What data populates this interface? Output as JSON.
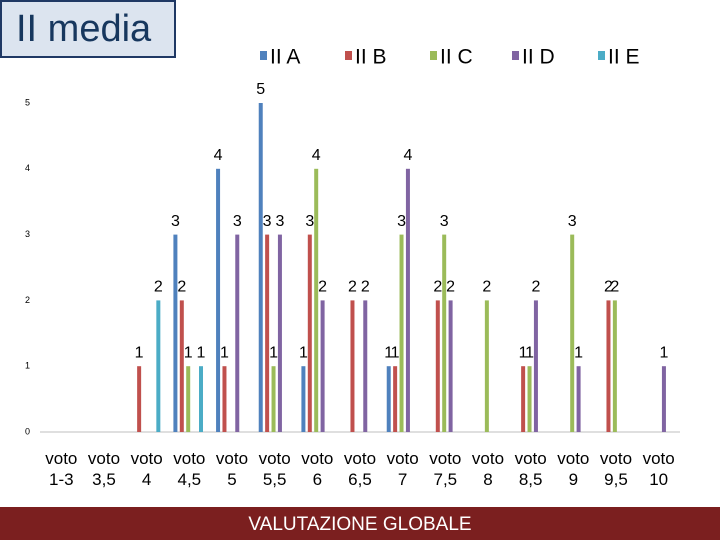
{
  "chart_data": {
    "type": "bar",
    "title": "II media",
    "xlabel": "VALUTAZIONE GLOBALE",
    "categories": [
      "voto 1-3",
      "voto 3,5",
      "voto 4",
      "voto 4,5",
      "voto 5",
      "voto 5,5",
      "voto 6",
      "voto 6,5",
      "voto 7",
      "voto 7,5",
      "voto 8",
      "voto 8,5",
      "voto 9",
      "voto 9,5",
      "voto 10"
    ],
    "series": [
      {
        "name": "II A",
        "color": "#4f81bd",
        "values": [
          null,
          null,
          null,
          3,
          4,
          5,
          1,
          null,
          1,
          null,
          null,
          null,
          null,
          null,
          null
        ]
      },
      {
        "name": "II B",
        "color": "#c0504d",
        "values": [
          null,
          null,
          1,
          2,
          1,
          3,
          3,
          2,
          1,
          2,
          null,
          1,
          null,
          2,
          null
        ]
      },
      {
        "name": "II C",
        "color": "#9bbb59",
        "values": [
          null,
          null,
          null,
          1,
          null,
          1,
          4,
          null,
          3,
          3,
          2,
          1,
          3,
          2,
          null
        ]
      },
      {
        "name": "II D",
        "color": "#8064a2",
        "values": [
          null,
          null,
          null,
          null,
          3,
          3,
          2,
          2,
          4,
          2,
          null,
          2,
          1,
          null,
          1
        ]
      },
      {
        "name": "II E",
        "color": "#4bacc6",
        "values": [
          null,
          null,
          2,
          1,
          null,
          null,
          null,
          null,
          null,
          null,
          null,
          null,
          null,
          null,
          null
        ]
      }
    ],
    "ylim": [
      0,
      5
    ],
    "yticks": [
      0,
      1,
      2,
      3,
      4,
      5
    ],
    "legend": "top",
    "grid": false
  }
}
